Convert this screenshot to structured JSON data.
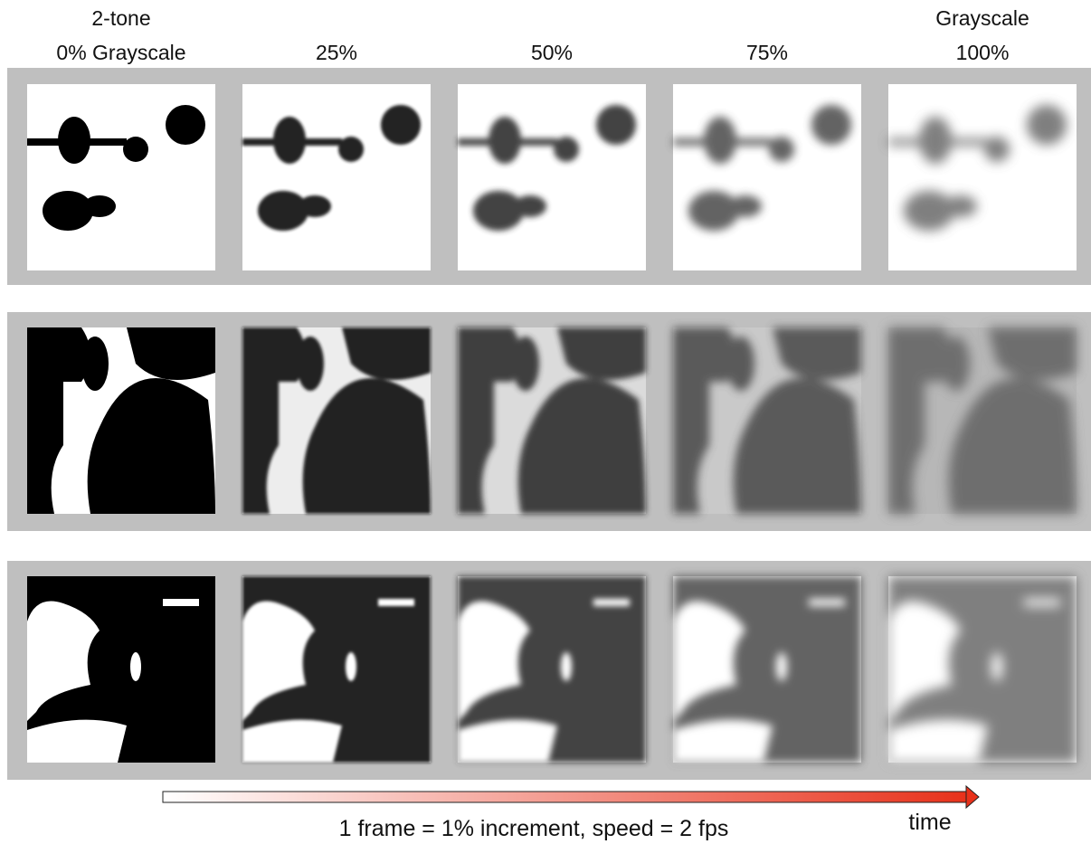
{
  "columns": [
    [
      "2-tone",
      "0% Grayscale"
    ],
    [
      "25%"
    ],
    [
      "50%"
    ],
    [
      "75%"
    ],
    [
      "Grayscale",
      "100%"
    ]
  ],
  "footer": {
    "caption": "1 frame = 1% increment, speed = 2 fps",
    "arrow_label": "time"
  }
}
